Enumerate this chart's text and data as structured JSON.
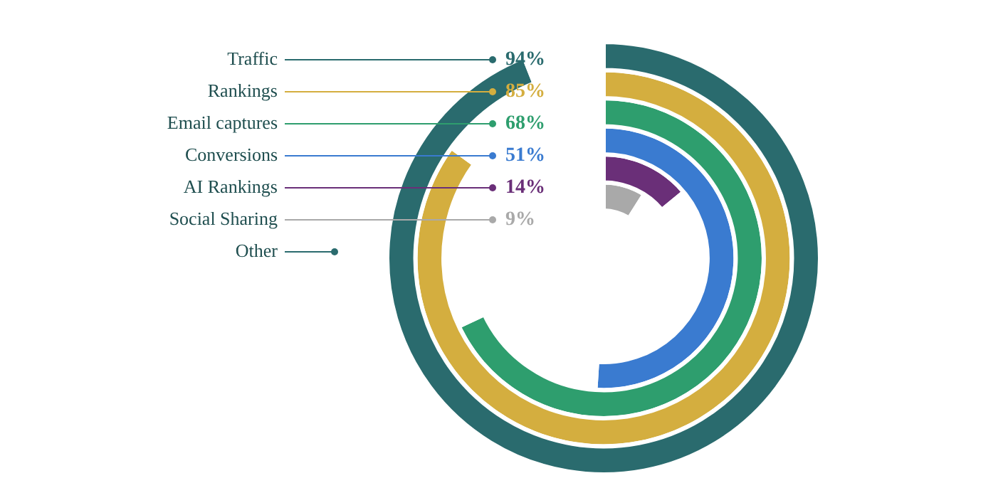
{
  "chart_data": {
    "type": "other",
    "categories": [
      "Traffic",
      "Rankings",
      "Email captures",
      "Conversions",
      "AI Rankings",
      "Social Sharing",
      "Other"
    ],
    "values": [
      94,
      85,
      68,
      51,
      14,
      9,
      null
    ],
    "value_labels": [
      "94%",
      "85%",
      "68%",
      "51%",
      "14%",
      "9%",
      null
    ],
    "colors": [
      "#2a6b6e",
      "#d4ae3f",
      "#2e9e6e",
      "#3a7bd0",
      "#6a2f78",
      "#a9a9a9",
      "#2a6b6e"
    ],
    "legend": false
  }
}
